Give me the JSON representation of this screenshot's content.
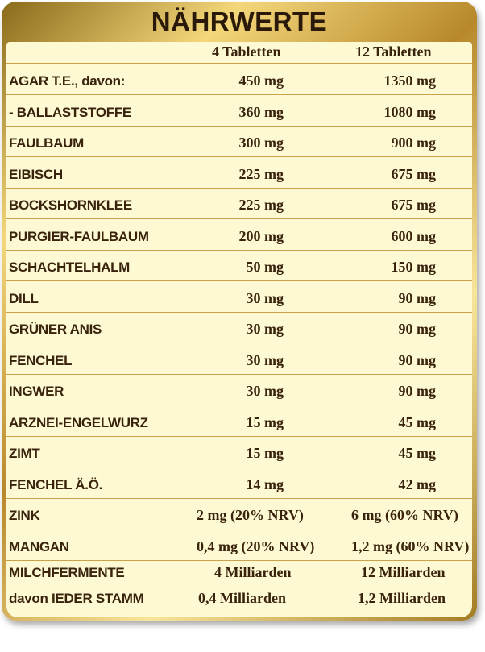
{
  "title": "NÄHRWERTE",
  "columns": [
    "4 Tabletten",
    "12 Tabletten"
  ],
  "rows": [
    {
      "name": "AGAR T.E., davon:",
      "v1": "450 mg",
      "v2": "1350 mg"
    },
    {
      "name": " - BALLASTSTOFFE",
      "v1": "360 mg",
      "v2": "1080 mg"
    },
    {
      "name": "FAULBAUM",
      "v1": "300 mg",
      "v2": "900 mg"
    },
    {
      "name": "EIBISCH",
      "v1": "225 mg",
      "v2": "675 mg"
    },
    {
      "name": "BOCKSHORNKLEE",
      "v1": "225 mg",
      "v2": "675 mg"
    },
    {
      "name": "PURGIER-FAULBAUM",
      "v1": "200 mg",
      "v2": "600 mg"
    },
    {
      "name": "SCHACHTELHALM",
      "v1": "50 mg",
      "v2": "150 mg"
    },
    {
      "name": "DILL",
      "v1": "30 mg",
      "v2": "90 mg"
    },
    {
      "name": "GRÜNER ANIS",
      "v1": "30 mg",
      "v2": "90 mg"
    },
    {
      "name": "FENCHEL",
      "v1": "30 mg",
      "v2": "90 mg"
    },
    {
      "name": "INGWER",
      "v1": "30 mg",
      "v2": "90 mg"
    },
    {
      "name": "ARZNEI-ENGELWURZ",
      "v1": "15 mg",
      "v2": "45 mg"
    },
    {
      "name": "ZIMT",
      "v1": "15 mg",
      "v2": "45 mg"
    },
    {
      "name": "FENCHEL Ä.Ö.",
      "v1": "14 mg",
      "v2": "42 mg"
    },
    {
      "name": "ZINK",
      "v1": "2 mg (20% NRV)",
      "v2": "6 mg (60% NRV)"
    },
    {
      "name": "MANGAN",
      "v1": "0,4 mg (20% NRV)",
      "v2": "1,2 mg (60% NRV)"
    },
    {
      "name": "MILCHFERMENTE",
      "v1": "4 Milliarden",
      "v2": "12 Milliarden"
    },
    {
      "name": "davon IEDER STAMM",
      "v1": "0,4 Milliarden",
      "v2": "1,2 Milliarden"
    }
  ]
}
